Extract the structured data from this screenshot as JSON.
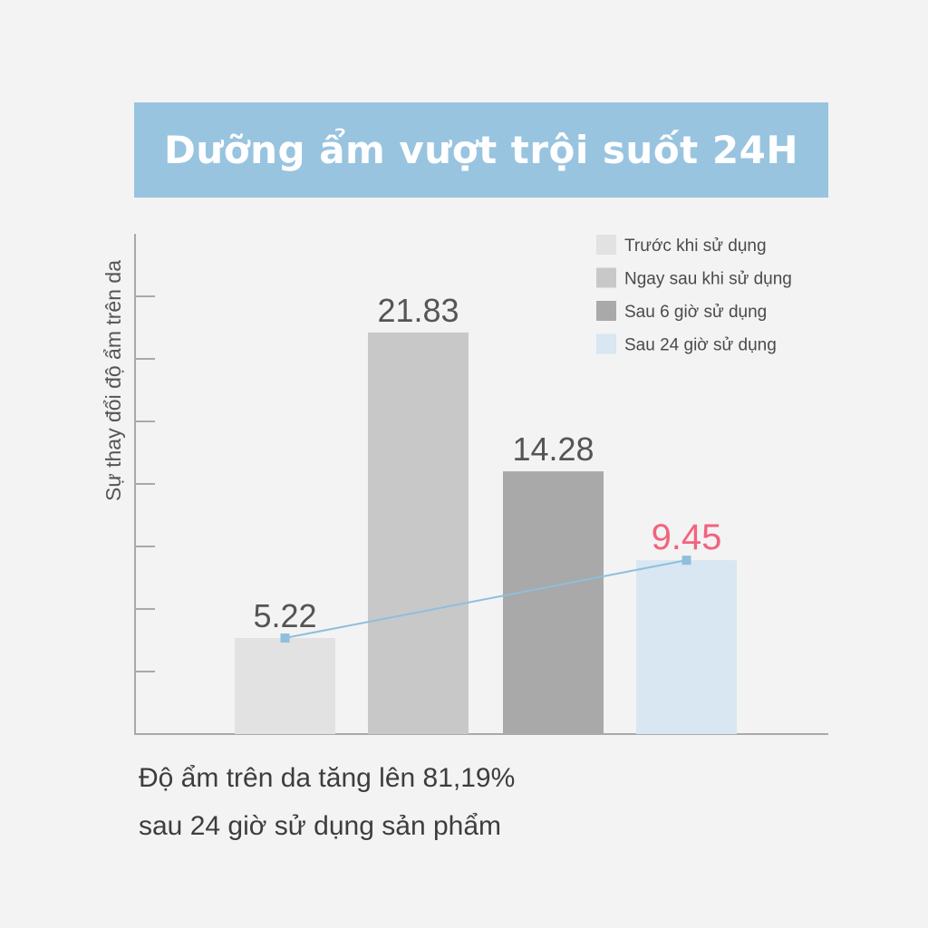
{
  "title": "Dưỡng ẩm vượt trội suốt 24H",
  "footnote": {
    "line1": "Độ ẩm trên da tăng lên 81,19%",
    "line2": "sau 24 giờ sử dụng sản phẩm"
  },
  "colors": {
    "banner": "#98c4e0",
    "bar_before": "#e2e2e2",
    "bar_immediately": "#c8c8c8",
    "bar_6h": "#a9a9a9",
    "bar_24h": "#d8e7f1",
    "trend_line": "#8ebfdc",
    "highlight_label": "#f2637e",
    "value_label": "#555555",
    "axis": "#a9a9a9"
  },
  "chart_data": {
    "type": "bar",
    "title": "Dưỡng ẩm vượt trội suốt 24H",
    "ylabel": "Sự thay đổi độ ẩm trên da",
    "xlabel": "",
    "ylim": [
      0,
      25
    ],
    "grid": false,
    "legend_position": "top-right",
    "categories": [
      "Trước khi sử dụng",
      "Ngay sau khi sử dụng",
      "Sau 6 giờ sử dụng",
      "Sau 24 giờ sử dụng"
    ],
    "values": [
      5.22,
      21.83,
      14.28,
      9.45
    ],
    "value_labels": [
      "5.22",
      "21.83",
      "14.28",
      "9.45"
    ],
    "highlighted_category": "Sau 24 giờ sử dụng",
    "trend_line": {
      "from_category": "Trước khi sử dụng",
      "to_category": "Sau 24 giờ sử dụng",
      "values": [
        5.22,
        9.45
      ]
    }
  }
}
